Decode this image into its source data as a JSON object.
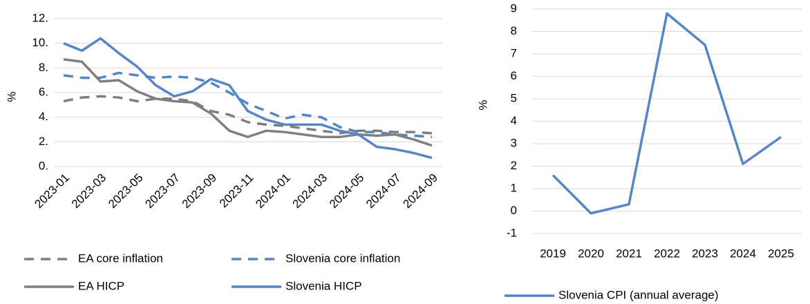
{
  "chart_data": [
    {
      "type": "line",
      "ylabel": "%",
      "categories": [
        "2023-01",
        null,
        "2023-03",
        null,
        "2023-05",
        null,
        "2023-07",
        null,
        "2023-09",
        null,
        "2023-11",
        null,
        "2024-01",
        null,
        "2024-03",
        null,
        "2024-05",
        null,
        "2024-07",
        null,
        "2024-09"
      ],
      "series": [
        {
          "name": "EA core inflation",
          "color": "#7f7f7f",
          "style": "dashed",
          "values": [
            5.3,
            5.6,
            5.7,
            5.6,
            5.3,
            5.5,
            5.5,
            5.3,
            4.5,
            4.2,
            3.6,
            3.4,
            3.3,
            3.1,
            2.9,
            2.7,
            2.9,
            2.9,
            2.8,
            2.8,
            2.7
          ]
        },
        {
          "name": "Slovenia core inflation",
          "color": "#5585c5",
          "style": "dashed",
          "values": [
            7.4,
            7.2,
            7.2,
            7.6,
            7.4,
            7.2,
            7.3,
            7.2,
            6.8,
            6.0,
            5.1,
            4.5,
            3.9,
            4.2,
            4.0,
            3.2,
            2.8,
            2.8,
            2.6,
            2.5,
            2.4
          ]
        },
        {
          "name": "EA HICP",
          "color": "#7f7f7f",
          "style": "solid",
          "values": [
            8.7,
            8.5,
            6.9,
            7.0,
            6.1,
            5.5,
            5.3,
            5.2,
            4.3,
            2.9,
            2.4,
            2.9,
            2.8,
            2.6,
            2.4,
            2.4,
            2.6,
            2.5,
            2.6,
            2.2,
            1.7
          ]
        },
        {
          "name": "Slovenia HICP",
          "color": "#5585c5",
          "style": "solid",
          "values": [
            10.0,
            9.4,
            10.4,
            9.2,
            8.1,
            6.6,
            5.7,
            6.1,
            7.1,
            6.6,
            4.5,
            3.8,
            3.4,
            3.4,
            3.4,
            2.9,
            2.6,
            1.6,
            1.4,
            1.1,
            0.7
          ]
        }
      ],
      "ylim": [
        0,
        12
      ],
      "yticks": [
        {
          "value": 0,
          "label": "0."
        },
        {
          "value": 2,
          "label": "2."
        },
        {
          "value": 4,
          "label": "4."
        },
        {
          "value": 6,
          "label": "6."
        },
        {
          "value": 8,
          "label": "8."
        },
        {
          "value": 10,
          "label": "10."
        },
        {
          "value": 12,
          "label": "12."
        }
      ],
      "grid": true
    },
    {
      "type": "line",
      "ylabel": "%",
      "categories": [
        "2019",
        "2020",
        "2021",
        "2022",
        "2023",
        "2024",
        "2025"
      ],
      "series": [
        {
          "name": "Slovenia CPI (annual average)",
          "color": "#5585c5",
          "style": "solid",
          "values": [
            1.6,
            -0.1,
            0.3,
            8.8,
            7.4,
            2.1,
            3.3
          ]
        }
      ],
      "ylim": [
        -1,
        9
      ],
      "yticks": [
        -1,
        0,
        1,
        2,
        3,
        4,
        5,
        6,
        7,
        8,
        9
      ],
      "grid": true
    }
  ]
}
